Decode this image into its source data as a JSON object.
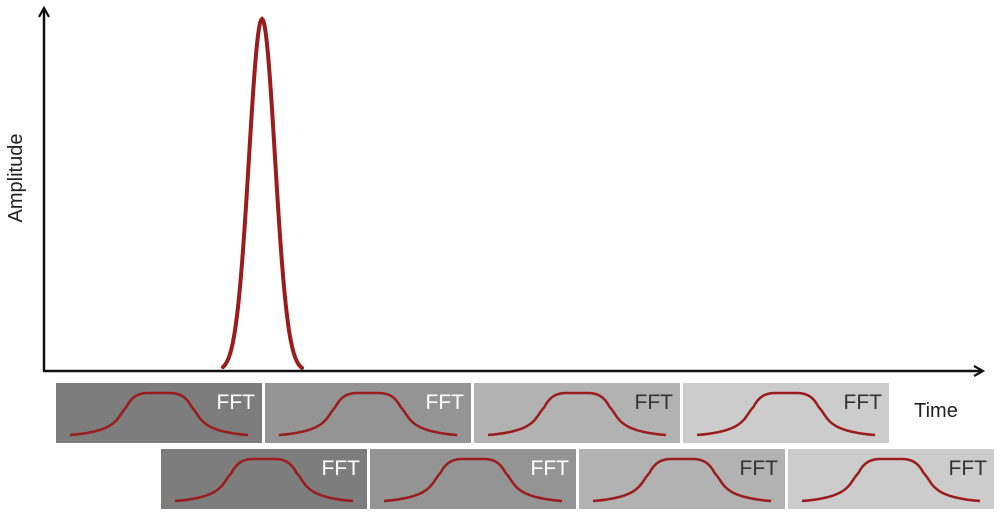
{
  "axes": {
    "y_label": "Amplitude",
    "x_label": "Time"
  },
  "colors": {
    "axis": "#111111",
    "pulse": "#9b1c1c",
    "window_curve": "#9b1c1c"
  },
  "windows": {
    "label": "FFT",
    "rows": [
      [
        {
          "label": "FFT",
          "fill": "#7d7d7d",
          "text_color": "#ffffff"
        },
        {
          "label": "FFT",
          "fill": "#949494",
          "text_color": "#ffffff"
        },
        {
          "label": "FFT",
          "fill": "#b2b2b2",
          "text_color": "#333333"
        },
        {
          "label": "FFT",
          "fill": "#cccccc",
          "text_color": "#333333"
        }
      ],
      [
        {
          "label": "FFT",
          "fill": "#7d7d7d",
          "text_color": "#ffffff"
        },
        {
          "label": "FFT",
          "fill": "#949494",
          "text_color": "#ffffff"
        },
        {
          "label": "FFT",
          "fill": "#b2b2b2",
          "text_color": "#333333"
        },
        {
          "label": "FFT",
          "fill": "#cccccc",
          "text_color": "#333333"
        }
      ]
    ]
  }
}
